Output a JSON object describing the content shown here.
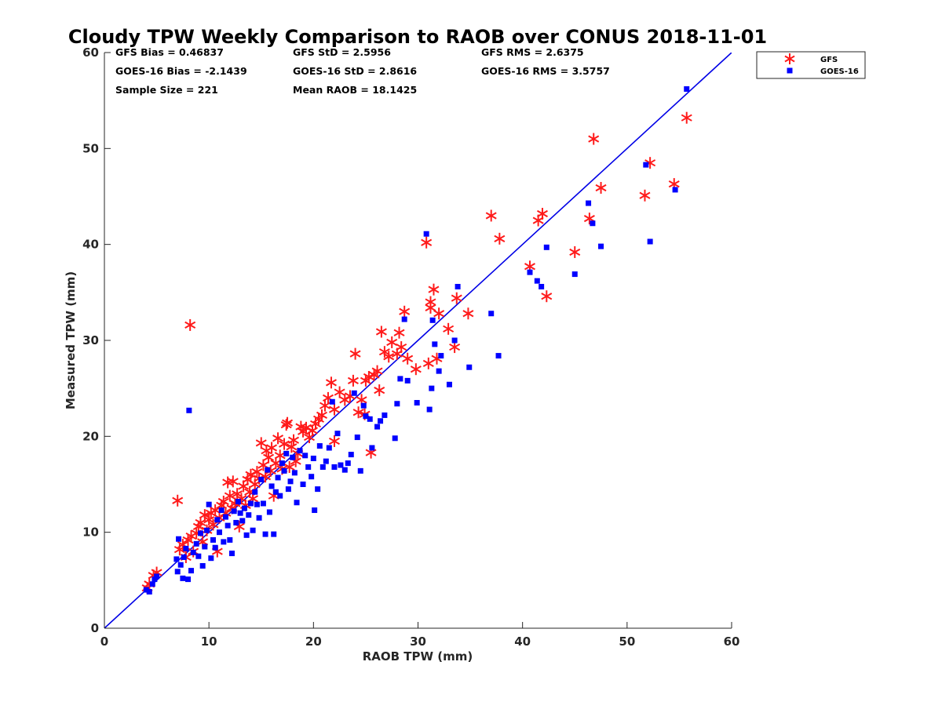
{
  "chart_data": {
    "type": "scatter",
    "title": "Cloudy TPW Weekly Comparison to RAOB over CONUS 2018-11-01",
    "xlabel": "RAOB TPW (mm)",
    "ylabel": "Measured TPW (mm)",
    "xlim": [
      0,
      60
    ],
    "ylim": [
      0,
      60
    ],
    "xticks": [
      "0",
      "10",
      "20",
      "30",
      "40",
      "50",
      "60"
    ],
    "yticks": [
      "0",
      "10",
      "20",
      "30",
      "40",
      "50",
      "60"
    ],
    "grid": false,
    "legend_position": "outside-top-right",
    "reference_line": {
      "x": [
        0,
        60
      ],
      "y": [
        0,
        60
      ],
      "color": "#0000e6"
    },
    "stats": [
      [
        "GFS Bias = 0.46837",
        "GFS StD = 2.5956",
        "GFS RMS = 2.6375"
      ],
      [
        "GOES-16 Bias = -2.1439",
        "GOES-16 StD = 2.8616",
        "GOES-16 RMS = 3.5757"
      ],
      [
        "Sample Size = 221",
        "Mean RAOB = 18.1425",
        ""
      ]
    ],
    "series": [
      {
        "name": "GFS",
        "marker": "asterisk",
        "color": "#ff1a1a",
        "points": [
          [
            4.1,
            4.2
          ],
          [
            4.3,
            4.6
          ],
          [
            4.7,
            5.5
          ],
          [
            5.0,
            5.8
          ],
          [
            7.0,
            13.3
          ],
          [
            7.2,
            8.2
          ],
          [
            7.5,
            8.7
          ],
          [
            7.8,
            7.4
          ],
          [
            8.0,
            9.2
          ],
          [
            8.2,
            31.6
          ],
          [
            8.3,
            9.6
          ],
          [
            8.5,
            8.0
          ],
          [
            8.8,
            9.9
          ],
          [
            9.0,
            10.6
          ],
          [
            9.2,
            11.0
          ],
          [
            9.4,
            9.0
          ],
          [
            9.6,
            11.8
          ],
          [
            9.8,
            10.2
          ],
          [
            10.0,
            11.3
          ],
          [
            10.2,
            12.0
          ],
          [
            10.4,
            10.8
          ],
          [
            10.6,
            12.3
          ],
          [
            10.8,
            8.0
          ],
          [
            11.0,
            11.5
          ],
          [
            11.2,
            12.8
          ],
          [
            11.4,
            13.2
          ],
          [
            11.6,
            12.0
          ],
          [
            11.8,
            15.2
          ],
          [
            12.0,
            13.8
          ],
          [
            12.2,
            12.5
          ],
          [
            12.3,
            15.3
          ],
          [
            12.5,
            13.0
          ],
          [
            12.7,
            14.0
          ],
          [
            12.9,
            10.6
          ],
          [
            13.1,
            13.5
          ],
          [
            13.3,
            14.8
          ],
          [
            13.5,
            12.8
          ],
          [
            13.7,
            15.5
          ],
          [
            13.9,
            14.2
          ],
          [
            14.0,
            16.0
          ],
          [
            14.2,
            13.5
          ],
          [
            14.4,
            15.0
          ],
          [
            14.6,
            16.3
          ],
          [
            14.8,
            15.6
          ],
          [
            15.0,
            19.3
          ],
          [
            15.2,
            17.0
          ],
          [
            15.4,
            15.8
          ],
          [
            15.5,
            18.5
          ],
          [
            15.7,
            17.8
          ],
          [
            15.9,
            16.4
          ],
          [
            16.0,
            18.8
          ],
          [
            16.2,
            13.8
          ],
          [
            16.4,
            17.2
          ],
          [
            16.6,
            19.8
          ],
          [
            16.8,
            18.0
          ],
          [
            17.0,
            16.6
          ],
          [
            17.2,
            19.2
          ],
          [
            17.4,
            21.2
          ],
          [
            17.5,
            21.4
          ],
          [
            17.7,
            16.8
          ],
          [
            17.9,
            18.9
          ],
          [
            18.1,
            19.6
          ],
          [
            18.3,
            17.4
          ],
          [
            18.5,
            18.2
          ],
          [
            18.8,
            21.0
          ],
          [
            19.0,
            20.5
          ],
          [
            19.3,
            20.9
          ],
          [
            19.6,
            19.9
          ],
          [
            19.9,
            20.6
          ],
          [
            20.2,
            21.3
          ],
          [
            20.5,
            21.8
          ],
          [
            20.8,
            22.2
          ],
          [
            21.1,
            23.2
          ],
          [
            21.4,
            24.0
          ],
          [
            21.7,
            25.6
          ],
          [
            22.0,
            22.8
          ],
          [
            22.0,
            19.5
          ],
          [
            22.5,
            24.6
          ],
          [
            23.0,
            23.8
          ],
          [
            23.5,
            24.2
          ],
          [
            23.8,
            25.8
          ],
          [
            24.0,
            28.6
          ],
          [
            24.3,
            22.5
          ],
          [
            24.6,
            23.8
          ],
          [
            24.9,
            22.3
          ],
          [
            25.0,
            25.8
          ],
          [
            25.3,
            26.2
          ],
          [
            25.5,
            18.3
          ],
          [
            25.8,
            26.4
          ],
          [
            26.1,
            26.8
          ],
          [
            26.3,
            24.8
          ],
          [
            26.5,
            30.9
          ],
          [
            26.8,
            28.8
          ],
          [
            27.2,
            28.3
          ],
          [
            27.5,
            29.8
          ],
          [
            28.0,
            28.6
          ],
          [
            28.2,
            30.8
          ],
          [
            28.4,
            29.3
          ],
          [
            28.7,
            33.0
          ],
          [
            29.0,
            28.1
          ],
          [
            29.8,
            27.0
          ],
          [
            30.8,
            40.2
          ],
          [
            31.0,
            27.6
          ],
          [
            31.2,
            33.4
          ],
          [
            31.2,
            34.0
          ],
          [
            31.5,
            35.3
          ],
          [
            31.8,
            28.1
          ],
          [
            32.0,
            32.8
          ],
          [
            32.9,
            31.2
          ],
          [
            33.5,
            29.3
          ],
          [
            33.7,
            34.4
          ],
          [
            34.8,
            32.8
          ],
          [
            37.0,
            43.0
          ],
          [
            37.8,
            40.6
          ],
          [
            40.7,
            37.7
          ],
          [
            41.5,
            42.5
          ],
          [
            41.9,
            43.2
          ],
          [
            42.3,
            34.6
          ],
          [
            45.0,
            39.2
          ],
          [
            46.4,
            42.7
          ],
          [
            46.8,
            51.0
          ],
          [
            47.5,
            45.9
          ],
          [
            51.7,
            45.1
          ],
          [
            52.2,
            48.5
          ],
          [
            54.5,
            46.3
          ],
          [
            55.7,
            53.2
          ]
        ]
      },
      {
        "name": "GOES-16",
        "marker": "square",
        "color": "#0000ff",
        "points": [
          [
            4.0,
            4.0
          ],
          [
            4.3,
            3.8
          ],
          [
            4.6,
            4.6
          ],
          [
            4.8,
            5.1
          ],
          [
            5.0,
            5.4
          ],
          [
            6.9,
            7.2
          ],
          [
            7.0,
            5.9
          ],
          [
            7.1,
            9.3
          ],
          [
            7.3,
            6.6
          ],
          [
            7.5,
            5.2
          ],
          [
            7.6,
            7.4
          ],
          [
            7.8,
            8.3
          ],
          [
            8.0,
            5.1
          ],
          [
            8.1,
            22.7
          ],
          [
            8.3,
            6.0
          ],
          [
            8.5,
            7.9
          ],
          [
            8.8,
            8.8
          ],
          [
            9.0,
            7.5
          ],
          [
            9.2,
            9.9
          ],
          [
            9.4,
            6.5
          ],
          [
            9.6,
            8.5
          ],
          [
            9.8,
            10.2
          ],
          [
            10.0,
            12.9
          ],
          [
            10.2,
            7.3
          ],
          [
            10.4,
            9.2
          ],
          [
            10.6,
            8.4
          ],
          [
            10.8,
            11.3
          ],
          [
            11.0,
            10.0
          ],
          [
            11.2,
            12.3
          ],
          [
            11.4,
            9.0
          ],
          [
            11.6,
            11.6
          ],
          [
            11.8,
            10.7
          ],
          [
            12.0,
            9.2
          ],
          [
            12.2,
            7.8
          ],
          [
            12.4,
            12.2
          ],
          [
            12.6,
            11.0
          ],
          [
            12.8,
            13.2
          ],
          [
            13.0,
            12.0
          ],
          [
            13.2,
            11.2
          ],
          [
            13.4,
            12.5
          ],
          [
            13.6,
            9.7
          ],
          [
            13.8,
            11.8
          ],
          [
            14.0,
            13.0
          ],
          [
            14.2,
            10.2
          ],
          [
            14.4,
            14.2
          ],
          [
            14.6,
            12.9
          ],
          [
            14.8,
            11.5
          ],
          [
            15.0,
            15.5
          ],
          [
            15.2,
            13.0
          ],
          [
            15.4,
            9.8
          ],
          [
            15.6,
            16.5
          ],
          [
            15.8,
            12.1
          ],
          [
            16.0,
            14.8
          ],
          [
            16.2,
            9.8
          ],
          [
            16.4,
            14.2
          ],
          [
            16.6,
            15.7
          ],
          [
            16.8,
            13.8
          ],
          [
            17.0,
            17.2
          ],
          [
            17.2,
            16.4
          ],
          [
            17.4,
            18.2
          ],
          [
            17.6,
            14.5
          ],
          [
            17.8,
            15.3
          ],
          [
            18.0,
            17.8
          ],
          [
            18.2,
            16.2
          ],
          [
            18.4,
            13.1
          ],
          [
            18.7,
            18.5
          ],
          [
            19.0,
            15.0
          ],
          [
            19.2,
            18.0
          ],
          [
            19.5,
            16.8
          ],
          [
            19.8,
            15.8
          ],
          [
            20.0,
            17.7
          ],
          [
            20.1,
            12.3
          ],
          [
            20.4,
            14.5
          ],
          [
            20.6,
            19.0
          ],
          [
            20.9,
            16.8
          ],
          [
            21.2,
            17.4
          ],
          [
            21.5,
            18.8
          ],
          [
            21.8,
            23.6
          ],
          [
            22.0,
            16.8
          ],
          [
            22.3,
            20.3
          ],
          [
            22.6,
            17.0
          ],
          [
            23.0,
            16.5
          ],
          [
            23.3,
            17.2
          ],
          [
            23.6,
            18.1
          ],
          [
            23.9,
            24.5
          ],
          [
            24.2,
            19.9
          ],
          [
            24.5,
            16.4
          ],
          [
            24.8,
            23.2
          ],
          [
            25.0,
            22.1
          ],
          [
            25.4,
            21.8
          ],
          [
            25.6,
            18.8
          ],
          [
            26.1,
            21.0
          ],
          [
            26.4,
            21.6
          ],
          [
            26.8,
            22.2
          ],
          [
            27.8,
            19.8
          ],
          [
            28.0,
            23.4
          ],
          [
            28.3,
            26.0
          ],
          [
            28.7,
            32.2
          ],
          [
            29.0,
            25.8
          ],
          [
            29.9,
            23.5
          ],
          [
            30.8,
            41.1
          ],
          [
            31.1,
            22.8
          ],
          [
            31.3,
            25.0
          ],
          [
            31.4,
            32.1
          ],
          [
            31.6,
            29.6
          ],
          [
            32.0,
            26.8
          ],
          [
            32.2,
            28.4
          ],
          [
            33.0,
            25.4
          ],
          [
            33.5,
            30.0
          ],
          [
            33.8,
            35.6
          ],
          [
            34.9,
            27.2
          ],
          [
            37.0,
            32.8
          ],
          [
            37.7,
            28.4
          ],
          [
            40.7,
            37.1
          ],
          [
            41.4,
            36.2
          ],
          [
            41.8,
            35.6
          ],
          [
            42.3,
            39.7
          ],
          [
            45.0,
            36.9
          ],
          [
            46.3,
            44.3
          ],
          [
            46.7,
            42.2
          ],
          [
            47.5,
            39.8
          ],
          [
            51.8,
            48.3
          ],
          [
            52.2,
            40.3
          ],
          [
            54.6,
            45.7
          ],
          [
            55.7,
            56.2
          ]
        ]
      }
    ]
  }
}
